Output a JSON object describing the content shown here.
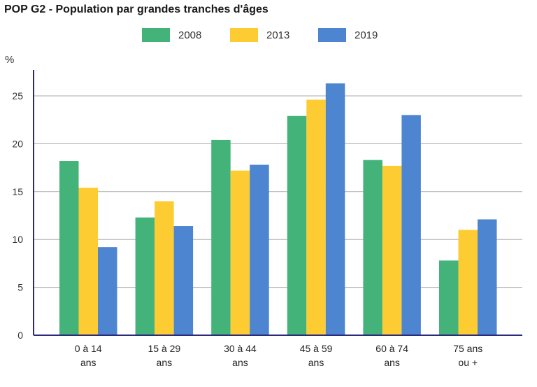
{
  "title": "POP G2 - Population par grandes tranches d'âges",
  "unit": "%",
  "chart_data": {
    "type": "bar",
    "title": "POP G2 - Population par grandes tranches d'âges",
    "ylabel": "%",
    "xlabel": "",
    "ylim": [
      0,
      28
    ],
    "yticks": [
      0,
      5,
      10,
      15,
      20,
      25
    ],
    "grid": true,
    "legend_position": "top",
    "categories": [
      [
        "0 à 14",
        "ans"
      ],
      [
        "15 à 29",
        "ans"
      ],
      [
        "30 à 44",
        "ans"
      ],
      [
        "45 à 59",
        "ans"
      ],
      [
        "60 à 74",
        "ans"
      ],
      [
        "75 ans",
        "ou +"
      ]
    ],
    "series": [
      {
        "name": "2008",
        "color": "#43b37a",
        "values": [
          18.2,
          12.3,
          20.4,
          22.9,
          18.3,
          7.8
        ]
      },
      {
        "name": "2013",
        "color": "#fdcc33",
        "values": [
          15.4,
          14.0,
          17.2,
          24.6,
          17.7,
          11.0
        ]
      },
      {
        "name": "2019",
        "color": "#4d85d1",
        "values": [
          9.2,
          11.4,
          17.8,
          26.3,
          23.0,
          12.1
        ]
      }
    ]
  }
}
